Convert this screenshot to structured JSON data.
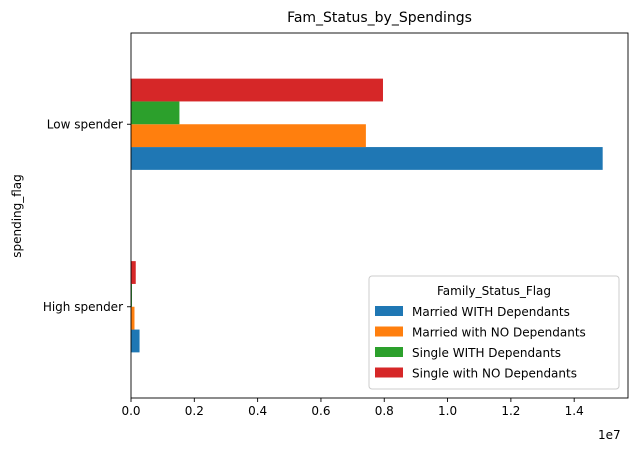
{
  "chart_data": {
    "type": "bar",
    "orientation": "horizontal",
    "title": "Fam_Status_by_Spendings",
    "xlabel": "",
    "ylabel": "spending_flag",
    "categories": [
      "High spender",
      "Low spender"
    ],
    "x_scale_label": "1e7",
    "xlim": [
      0,
      15700000
    ],
    "x_ticks": [
      0,
      2000000,
      4000000,
      6000000,
      8000000,
      10000000,
      12000000,
      14000000
    ],
    "x_tick_labels": [
      "0.0",
      "0.2",
      "0.4",
      "0.6",
      "0.8",
      "1.0",
      "1.2",
      "1.4"
    ],
    "grid": false,
    "legend": {
      "title": "Family_Status_Flag",
      "placement": "lower right"
    },
    "series": [
      {
        "name": "Married WITH Dependants",
        "color": "#1f77b4",
        "values": [
          270000,
          14900000
        ]
      },
      {
        "name": "Married with NO Dependants",
        "color": "#ff7f0e",
        "values": [
          110000,
          7420000
        ]
      },
      {
        "name": "Single WITH Dependants",
        "color": "#2ca02c",
        "values": [
          30000,
          1530000
        ]
      },
      {
        "name": "Single with NO Dependants",
        "color": "#d62728",
        "values": [
          150000,
          7960000
        ]
      }
    ]
  }
}
